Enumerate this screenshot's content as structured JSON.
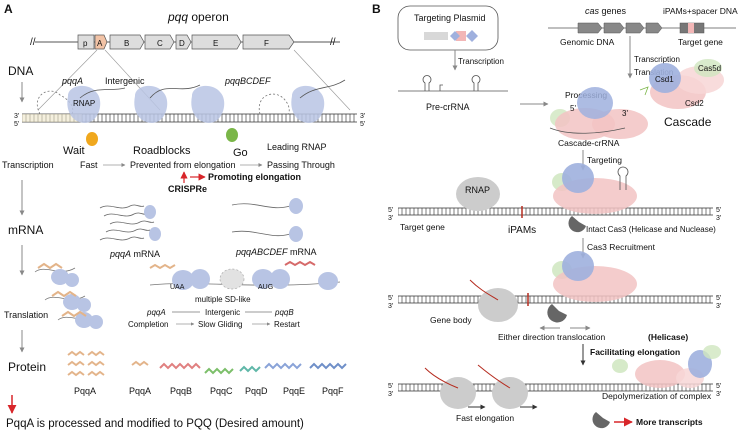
{
  "panelA": {
    "label": "A",
    "operon_title": "pqq",
    "operon_word": "operon",
    "genes": [
      "p",
      "A",
      "B",
      "C",
      "D",
      "E",
      "F"
    ],
    "dna": "DNA",
    "pqqA": "pqqA",
    "intergenic": "Intergenic",
    "pqqBCDEF": "pqqBCDEF",
    "rnap": "RNAP",
    "wait": "Wait",
    "roadblocks": "Roadblocks",
    "go": "Go",
    "leading_rnap": "Leading RNAP",
    "transcription": "Transcription",
    "fast": "Fast",
    "prevented": "Prevented from elongation",
    "passing": "Passing Through",
    "crispre": "CRISPRe",
    "promoting": "Promoting elongation",
    "mrna": "mRNA",
    "pqqA_mrna_gene": "pqqA",
    "pqqA_mrna_word": "mRNA",
    "pqqABCDEF_mrna_gene": "pqqABCDEF",
    "pqqABCDEF_mrna_word": "mRNA",
    "uaa": "UAA",
    "aug": "AUG",
    "multiple_sd": "multiple SD-like",
    "translation": "Translation",
    "pqqA_label": "pqqA",
    "intergenic2": "Intergenic",
    "pqqB_label": "pqqB",
    "completion": "Completion",
    "slow_gliding": "Slow Gliding",
    "restart": "Restart",
    "protein": "Protein",
    "proteins": [
      "PqqA",
      "PqqA",
      "PqqB",
      "PqqC",
      "PqqD",
      "PqqE",
      "PqqF"
    ],
    "conclusion": "PqqA is processed and modified to PQQ  (Desired amount)",
    "five": "5'",
    "three": "3'"
  },
  "panelB": {
    "label": "B",
    "targeting_plasmid": "Targeting Plasmid",
    "cas_genes_italic": "cas",
    "cas_genes_word": "genes",
    "ipams_spacer": "iPAMs+spacer DNA",
    "genomic_dna": "Genomic DNA",
    "target_gene_top": "Target gene",
    "transcription": "Transcription",
    "translation": "Translation",
    "pre_crrna": "Pre-crRNA",
    "processing": "Processing",
    "csd1": "Csd1",
    "cas5d": "Cas5d",
    "csd2": "Csd2",
    "cascade": "Cascade",
    "cascade_crrna": "Cascade-crRNA",
    "targeting": "Targeting",
    "rnap": "RNAP",
    "target_gene": "Target gene",
    "ipams": "iPAMs",
    "intact_cas3": "Intact Cas3 (Helicase and Nuclease)",
    "cas3_recruitment": "Cas3 Recruitment",
    "gene_body": "Gene body",
    "either_direction": "Either direction translocation",
    "helicase": "(Helicase)",
    "facilitating": "Facilitating elongation",
    "depolymerization": "Depolymerization of complex",
    "fast_elongation": "Fast elongation",
    "more_transcripts": "More transcripts",
    "five": "5'",
    "three": "3'"
  },
  "colors": {
    "rnap_blue": "#b8c4e4",
    "cascade_pink": "#f2c3c3",
    "csd1_blue": "#9fb0de",
    "cas5d_green": "#cfe6bf",
    "cas3_gray": "#666666",
    "rnap_gray": "#cccccc",
    "orange": "#f0a81e",
    "green": "#7ab648",
    "red_arrow": "#d8262a"
  }
}
